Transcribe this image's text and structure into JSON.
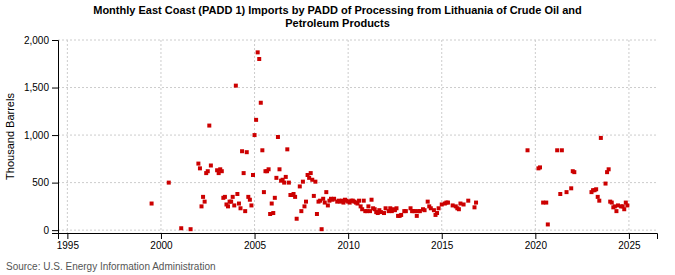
{
  "chart_data": {
    "type": "scatter",
    "title": "Monthly East Coast (PADD 1) Imports by PADD of Processing from Lithuania of Crude Oil and\nPetroleum Products",
    "ylabel": "Thousand Barrels",
    "source": "Source: U.S. Energy Information Administration",
    "xlim": [
      1994.5,
      2026.5
    ],
    "ylim": [
      -30,
      2000
    ],
    "xticks": [
      1995,
      2000,
      2005,
      2010,
      2015,
      2020,
      2025
    ],
    "yticks": [
      0,
      500,
      {
        "value": 1000,
        "label": "1,000"
      },
      {
        "value": 1500,
        "label": "1,500"
      },
      {
        "value": 2000,
        "label": "2,000"
      }
    ],
    "grid": true,
    "color": "#cc0000",
    "marker": "square",
    "x": [
      1999.5,
      2000.417,
      2001.083,
      2001.583,
      2002.0,
      2002.083,
      2002.167,
      2002.25,
      2002.333,
      2002.417,
      2002.5,
      2002.583,
      2002.667,
      2003.0,
      2003.083,
      2003.167,
      2003.25,
      2003.333,
      2003.417,
      2003.5,
      2003.583,
      2003.667,
      2003.75,
      2003.833,
      2003.917,
      2004.0,
      2004.083,
      2004.167,
      2004.25,
      2004.333,
      2004.417,
      2004.5,
      2004.583,
      2004.667,
      2004.75,
      2004.833,
      2004.917,
      2005.0,
      2005.083,
      2005.167,
      2005.25,
      2005.333,
      2005.417,
      2005.5,
      2005.583,
      2005.667,
      2005.75,
      2005.833,
      2005.917,
      2006.0,
      2006.083,
      2006.167,
      2006.25,
      2006.333,
      2006.417,
      2006.5,
      2006.583,
      2006.667,
      2006.75,
      2006.833,
      2006.917,
      2007.0,
      2007.083,
      2007.167,
      2007.25,
      2007.417,
      2007.5,
      2007.583,
      2007.667,
      2007.75,
      2007.833,
      2007.917,
      2008.0,
      2008.083,
      2008.167,
      2008.25,
      2008.333,
      2008.417,
      2008.5,
      2008.583,
      2008.667,
      2008.75,
      2008.833,
      2008.917,
      2009.0,
      2009.083,
      2009.167,
      2009.25,
      2009.417,
      2009.5,
      2009.583,
      2009.667,
      2009.75,
      2009.833,
      2009.917,
      2010.0,
      2010.083,
      2010.167,
      2010.25,
      2010.333,
      2010.417,
      2010.5,
      2010.583,
      2010.667,
      2010.75,
      2010.833,
      2010.917,
      2011.0,
      2011.083,
      2011.167,
      2011.25,
      2011.333,
      2011.417,
      2011.5,
      2011.583,
      2011.667,
      2011.75,
      2011.917,
      2012.0,
      2012.167,
      2012.25,
      2012.333,
      2012.417,
      2012.5,
      2012.583,
      2012.667,
      2012.75,
      2012.833,
      2013.0,
      2013.083,
      2013.333,
      2013.417,
      2013.5,
      2013.583,
      2013.667,
      2013.75,
      2013.833,
      2014.0,
      2014.083,
      2014.25,
      2014.333,
      2014.417,
      2014.583,
      2014.667,
      2014.75,
      2014.833,
      2015.0,
      2015.167,
      2015.25,
      2015.333,
      2015.583,
      2015.75,
      2015.833,
      2015.917,
      2016.0,
      2016.167,
      2016.417,
      2016.75,
      2016.833,
      2019.583,
      2020.167,
      2020.25,
      2020.417,
      2020.583,
      2020.667,
      2021.167,
      2021.333,
      2021.417,
      2021.667,
      2021.917,
      2022.0,
      2022.083,
      2023.0,
      2023.083,
      2023.167,
      2023.25,
      2023.333,
      2023.417,
      2023.5,
      2023.75,
      2023.833,
      2023.917,
      2024.0,
      2024.083,
      2024.167,
      2024.25,
      2024.333,
      2024.417,
      2024.583,
      2024.667,
      2024.75,
      2024.833,
      2024.917
    ],
    "values": [
      280,
      500,
      20,
      10,
      700,
      650,
      250,
      350,
      300,
      600,
      620,
      1100,
      680,
      630,
      600,
      640,
      620,
      340,
      350,
      270,
      250,
      300,
      300,
      350,
      260,
      1520,
      380,
      280,
      230,
      830,
      600,
      200,
      820,
      350,
      320,
      260,
      580,
      1000,
      1160,
      1870,
      1800,
      1340,
      840,
      400,
      620,
      620,
      640,
      170,
      280,
      180,
      340,
      550,
      980,
      640,
      520,
      530,
      500,
      560,
      850,
      500,
      370,
      370,
      380,
      350,
      120,
      460,
      200,
      510,
      250,
      300,
      580,
      550,
      600,
      530,
      360,
      510,
      170,
      300,
      310,
      10,
      330,
      290,
      400,
      260,
      310,
      330,
      320,
      330,
      300,
      310,
      300,
      310,
      290,
      320,
      310,
      300,
      290,
      310,
      310,
      300,
      290,
      280,
      310,
      250,
      220,
      310,
      200,
      200,
      250,
      200,
      320,
      230,
      220,
      190,
      180,
      210,
      190,
      180,
      230,
      200,
      230,
      200,
      220,
      210,
      230,
      150,
      150,
      160,
      200,
      200,
      230,
      200,
      200,
      200,
      150,
      200,
      200,
      220,
      210,
      300,
      250,
      230,
      210,
      160,
      180,
      230,
      270,
      280,
      290,
      290,
      260,
      250,
      230,
      220,
      280,
      270,
      310,
      240,
      290,
      840,
      650,
      660,
      290,
      290,
      60,
      840,
      380,
      840,
      400,
      440,
      620,
      610,
      400,
      420,
      420,
      430,
      350,
      310,
      970,
      490,
      610,
      640,
      300,
      290,
      240,
      250,
      200,
      260,
      250,
      250,
      220,
      290,
      260
    ]
  }
}
